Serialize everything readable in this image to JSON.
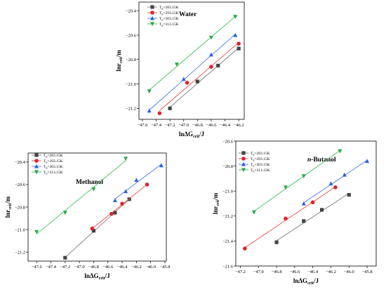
{
  "colors": {
    "s283": "#444444",
    "s293": "#e0242b",
    "s303": "#2b62e0",
    "s313": "#2aa84a",
    "fit283": "#7a7a7a",
    "fit293": "#e84a4a",
    "fit303": "#4a7ae8",
    "fit313": "#3fbf5a"
  },
  "chart_data": [
    {
      "type": "scatter",
      "title": "Water",
      "title_italic": false,
      "xlabel": "lnΔG_crit/J",
      "ylabel": "lnr_crit/m",
      "xlim": [
        -47.65,
        -46.12
      ],
      "ylim": [
        -21.29,
        -20.33
      ],
      "xticks": [
        -47.6,
        -47.4,
        -47.2,
        -47.0,
        -46.8,
        -46.6,
        -46.4,
        -46.2
      ],
      "yticks": [
        -21.2,
        -21.0,
        -20.8,
        -20.6,
        -20.4
      ],
      "legend_position": "top-left",
      "series": [
        {
          "name": "T0=283.15K",
          "marker": "square",
          "color_key": "s283",
          "fit_key": "fit283",
          "x": [
            -47.2,
            -46.8,
            -46.5,
            -46.2
          ],
          "y": [
            -21.2,
            -20.98,
            -20.85,
            -20.71
          ]
        },
        {
          "name": "T0=293.15K",
          "marker": "circle",
          "color_key": "s293",
          "fit_key": "fit293",
          "x": [
            -47.35,
            -46.95,
            -46.6,
            -46.2
          ],
          "y": [
            -21.24,
            -20.99,
            -20.86,
            -20.67
          ]
        },
        {
          "name": "T0=303.15K",
          "marker": "triangle-up",
          "color_key": "s303",
          "fit_key": "fit303",
          "x": [
            -47.5,
            -47.0,
            -46.6,
            -46.25
          ],
          "y": [
            -21.22,
            -20.96,
            -20.76,
            -20.6
          ]
        },
        {
          "name": "T0=313.15K",
          "marker": "triangle-down",
          "color_key": "s313",
          "fit_key": "fit313",
          "x": [
            -47.5,
            -47.1,
            -46.6,
            -46.25
          ],
          "y": [
            -21.06,
            -20.84,
            -20.62,
            -20.45
          ]
        }
      ]
    },
    {
      "type": "scatter",
      "title": "Methanol",
      "title_italic": false,
      "xlabel": "lnΔG_crit/J",
      "ylabel": "lnr_crit/m",
      "xlim": [
        -47.72,
        -45.78
      ],
      "ylim": [
        -21.28,
        -20.32
      ],
      "xticks": [
        -47.6,
        -47.4,
        -47.2,
        -47.0,
        -46.8,
        -46.6,
        -46.4,
        -46.2,
        -46.0,
        -45.8
      ],
      "yticks": [
        -21.2,
        -21.0,
        -20.8,
        -20.6,
        -20.4
      ],
      "legend_position": "top-left",
      "series": [
        {
          "name": "T0=283.15K",
          "marker": "square",
          "color_key": "s283",
          "fit_key": "fit283",
          "x": [
            -47.2,
            -46.8,
            -46.5,
            -46.3
          ],
          "y": [
            -21.25,
            -21.01,
            -20.85,
            -20.73
          ]
        },
        {
          "name": "T0=293.15K",
          "marker": "circle",
          "color_key": "s293",
          "fit_key": "fit293",
          "x": [
            -46.82,
            -46.55,
            -46.4,
            -46.05
          ],
          "y": [
            -20.99,
            -20.86,
            -20.77,
            -20.6
          ]
        },
        {
          "name": "T0=303.15K",
          "marker": "triangle-up",
          "color_key": "s303",
          "fit_key": "fit303",
          "x": [
            -46.5,
            -46.35,
            -46.2,
            -45.85
          ],
          "y": [
            -20.74,
            -20.66,
            -20.56,
            -20.43
          ]
        },
        {
          "name": "T0=313.15K",
          "marker": "triangle-down",
          "color_key": "s313",
          "fit_key": "fit313",
          "x": [
            -47.6,
            -47.2,
            -46.8,
            -46.35
          ],
          "y": [
            -21.02,
            -20.85,
            -20.64,
            -20.37
          ]
        }
      ]
    },
    {
      "type": "scatter",
      "title": "n-Butanol",
      "title_italic": true,
      "xlabel": "lnΔG_crit/J",
      "ylabel": "lnr_crit/m",
      "xlim": [
        -47.25,
        -45.7
      ],
      "ylim": [
        -21.6,
        -20.6
      ],
      "xticks": [
        -47.2,
        -47.0,
        -46.8,
        -46.6,
        -46.4,
        -46.2,
        -46.0,
        -45.8
      ],
      "yticks": [
        -21.6,
        -21.4,
        -21.2,
        -21.0,
        -20.8,
        -20.6
      ],
      "legend_position": "top-left",
      "series": [
        {
          "name": "T0=283.15K",
          "marker": "square",
          "color_key": "s283",
          "fit_key": "fit283",
          "x": [
            -46.8,
            -46.5,
            -46.3,
            -46.0
          ],
          "y": [
            -21.41,
            -21.24,
            -21.15,
            -21.03
          ]
        },
        {
          "name": "T0=293.15K",
          "marker": "circle",
          "color_key": "s293",
          "fit_key": "fit293",
          "x": [
            -47.15,
            -46.7,
            -46.4,
            -46.15
          ],
          "y": [
            -21.46,
            -21.22,
            -21.09,
            -20.97
          ]
        },
        {
          "name": "T0=303.15K",
          "marker": "triangle-up",
          "color_key": "s303",
          "fit_key": "fit303",
          "x": [
            -46.5,
            -46.2,
            -46.05,
            -45.8
          ],
          "y": [
            -21.1,
            -20.94,
            -20.87,
            -20.76
          ]
        },
        {
          "name": "T0=313.15K",
          "marker": "triangle-down",
          "color_key": "s313",
          "fit_key": "fit313",
          "x": [
            -47.05,
            -46.7,
            -46.5,
            -46.1
          ],
          "y": [
            -21.17,
            -20.97,
            -20.88,
            -20.68
          ]
        }
      ]
    }
  ]
}
